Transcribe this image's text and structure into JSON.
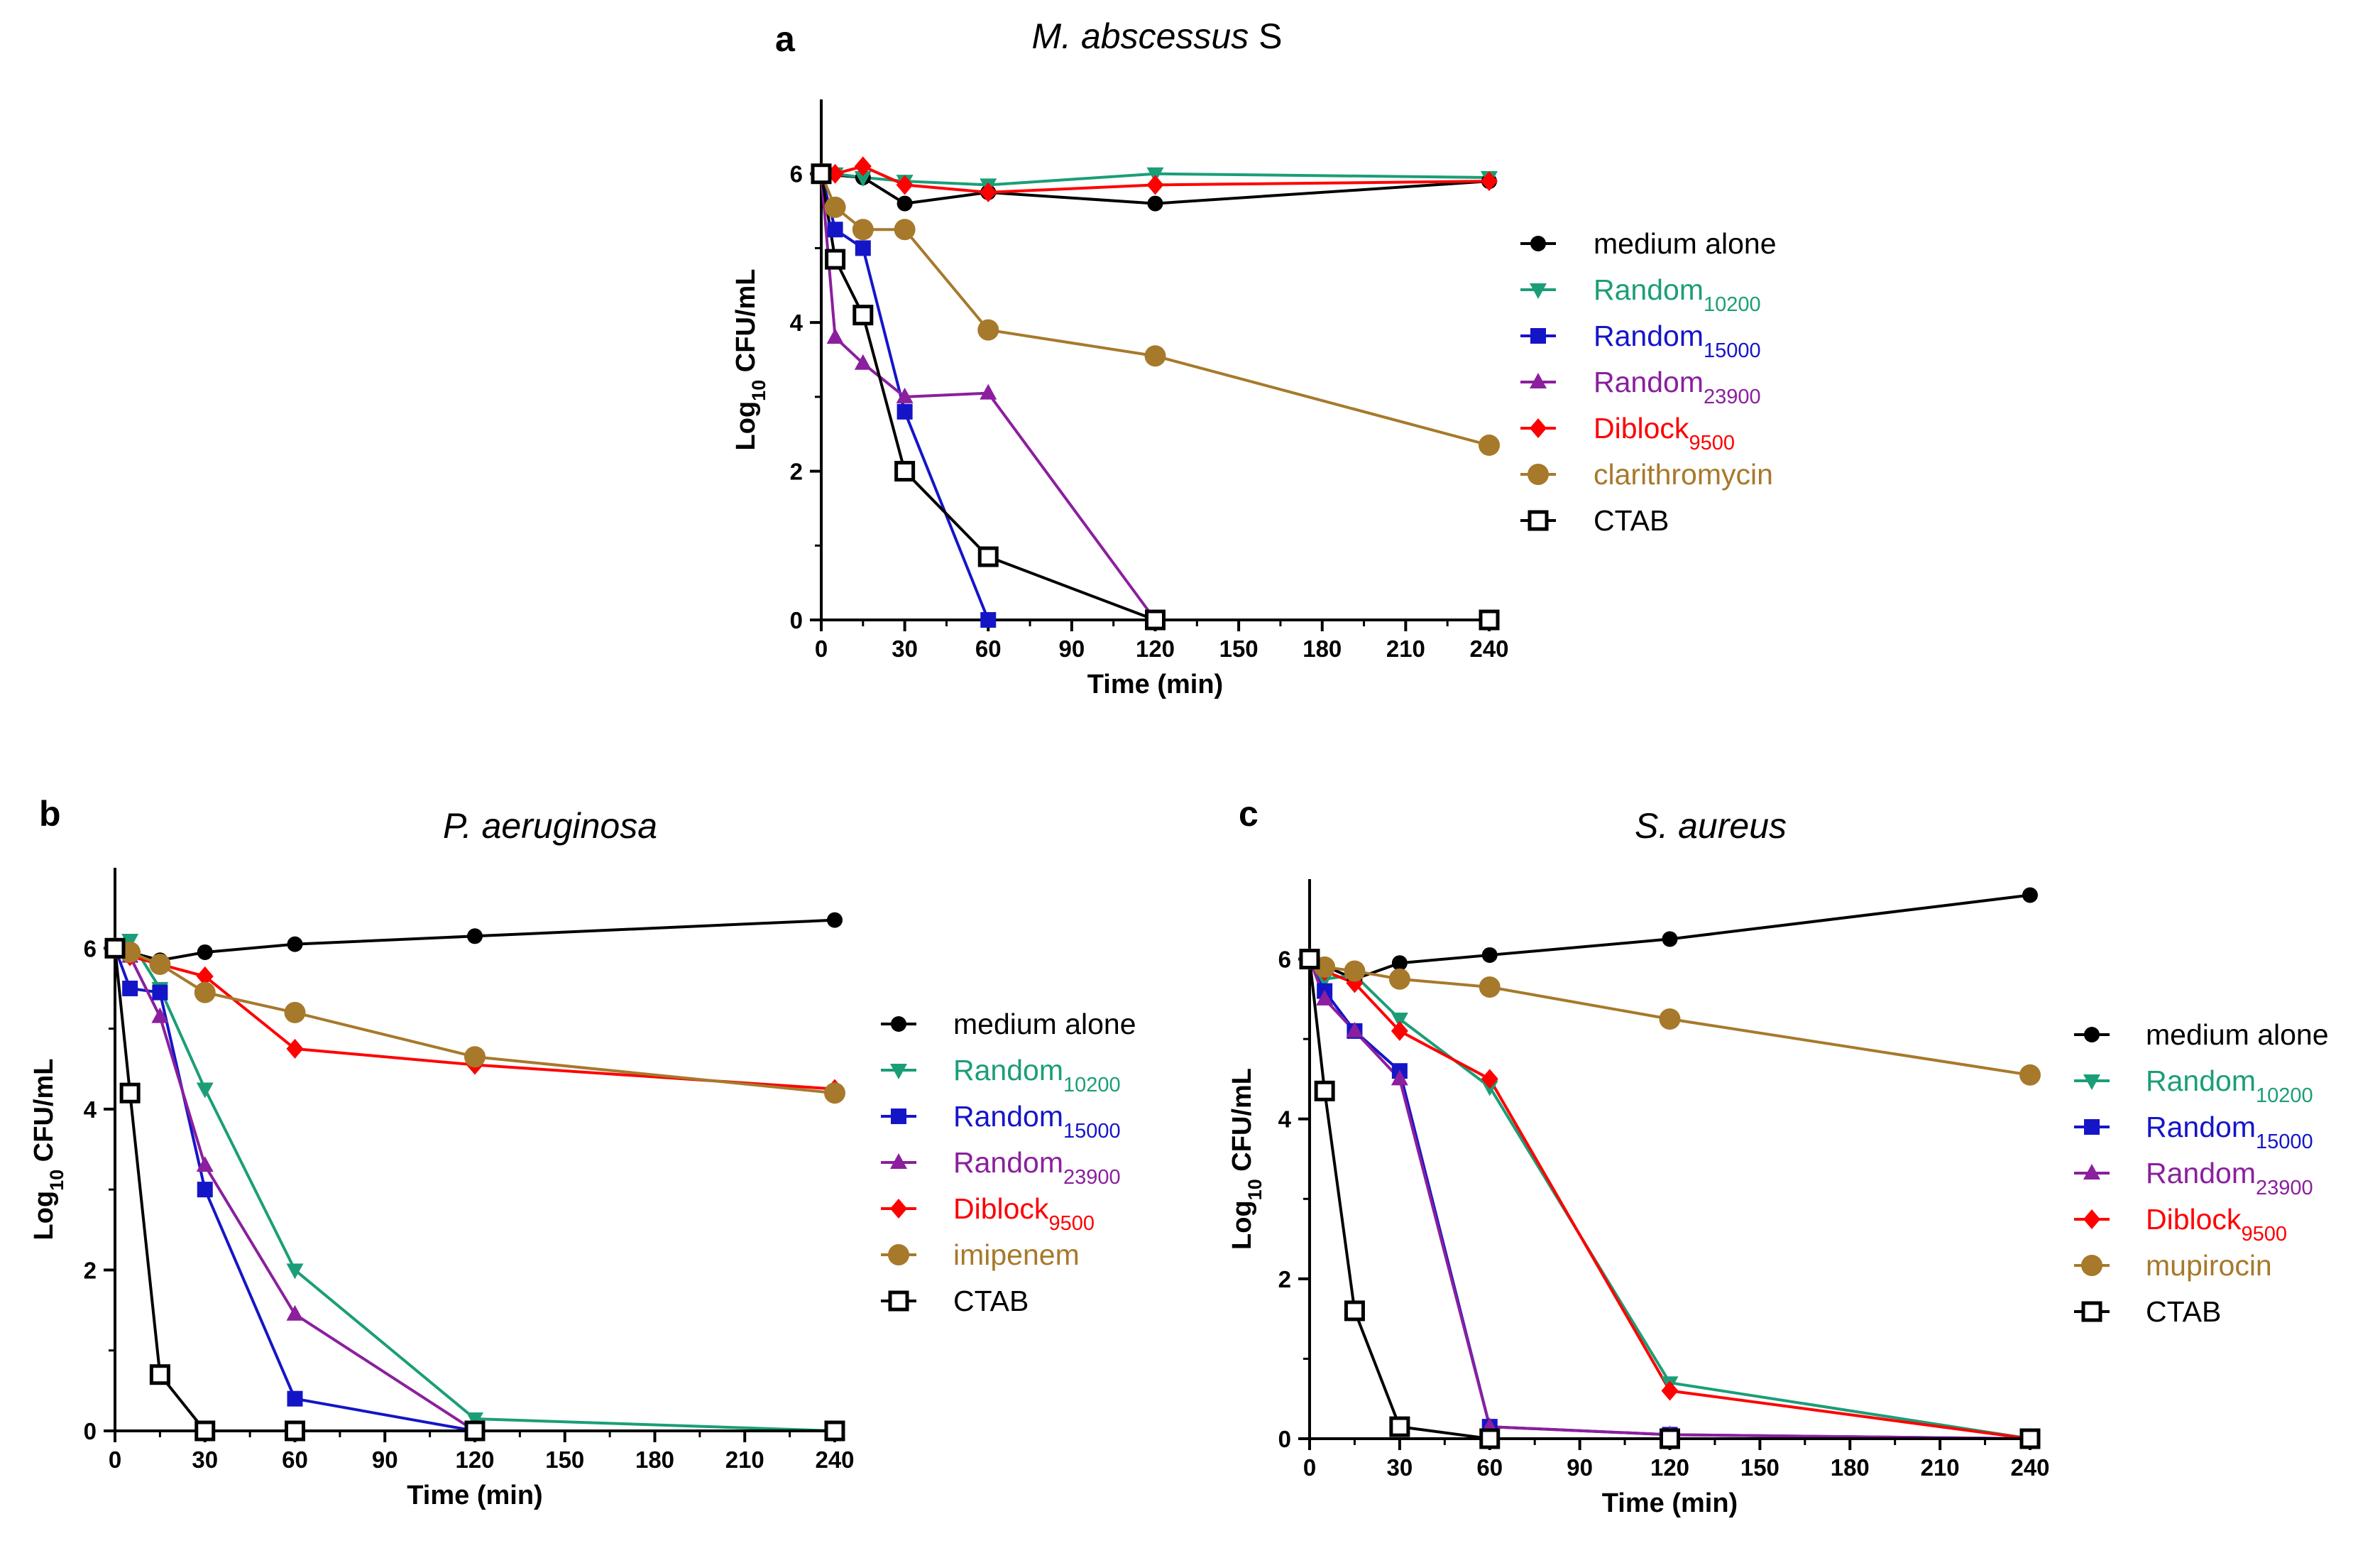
{
  "colors": {
    "medium alone": "#000000",
    "Random10200": "#1b9e77",
    "Random15000": "#1515c8",
    "Random23900": "#8b1f9e",
    "Diblock9500": "#ff0000",
    "antibiotic": "#a7792b",
    "CTAB": "#000000"
  },
  "chart_data": [
    {
      "panel": "a",
      "type": "line",
      "title": "M. abscessus S",
      "title_italic_part": "M. abscessus",
      "title_plain_part": " S",
      "xlabel": "Time (min)",
      "ylabel_main": "Log",
      "ylabel_sub": "10",
      "ylabel_rest": " CFU/mL",
      "xlim": [
        0,
        240
      ],
      "ylim": [
        0,
        7
      ],
      "xticks": [
        0,
        30,
        60,
        90,
        120,
        150,
        180,
        210,
        240
      ],
      "yticks": [
        0,
        2,
        4,
        6
      ],
      "legend_position": "right",
      "series": [
        {
          "name": "medium alone",
          "label_main": "medium alone",
          "label_sub": "",
          "marker": "circle",
          "color_key": "medium alone",
          "x": [
            0,
            15,
            30,
            60,
            120,
            240
          ],
          "y": [
            6.0,
            5.95,
            5.6,
            5.75,
            5.6,
            5.9
          ]
        },
        {
          "name": "Random10200",
          "label_main": "Random",
          "label_sub": "10200",
          "marker": "triangle-down",
          "color_key": "Random10200",
          "x": [
            0,
            5,
            15,
            30,
            60,
            120,
            240
          ],
          "y": [
            6.0,
            6.0,
            5.95,
            5.9,
            5.85,
            6.0,
            5.95
          ]
        },
        {
          "name": "Random15000",
          "label_main": "Random",
          "label_sub": "15000",
          "marker": "square",
          "color_key": "Random15000",
          "x": [
            0,
            5,
            15,
            30,
            60
          ],
          "y": [
            6.0,
            5.25,
            5.0,
            2.8,
            0.0
          ]
        },
        {
          "name": "Random23900",
          "label_main": "Random",
          "label_sub": "23900",
          "marker": "triangle-up",
          "color_key": "Random23900",
          "x": [
            0,
            5,
            15,
            30,
            60,
            120,
            240
          ],
          "y": [
            6.0,
            3.8,
            3.45,
            3.0,
            3.05,
            0.0,
            0.0
          ]
        },
        {
          "name": "Diblock9500",
          "label_main": "Diblock",
          "label_sub": "9500",
          "marker": "diamond",
          "color_key": "Diblock9500",
          "x": [
            0,
            5,
            15,
            30,
            60,
            120,
            240
          ],
          "y": [
            6.0,
            6.0,
            6.1,
            5.85,
            5.75,
            5.85,
            5.9
          ]
        },
        {
          "name": "clarithromycin",
          "label_main": "clarithromycin",
          "label_sub": "",
          "marker": "big-circle",
          "color_key": "antibiotic",
          "x": [
            0,
            5,
            15,
            30,
            60,
            120,
            240
          ],
          "y": [
            6.0,
            5.55,
            5.25,
            5.25,
            3.9,
            3.55,
            2.35
          ]
        },
        {
          "name": "CTAB",
          "label_main": "CTAB",
          "label_sub": "",
          "marker": "open-square",
          "color_key": "CTAB",
          "x": [
            0,
            5,
            15,
            30,
            60,
            120,
            240
          ],
          "y": [
            6.0,
            4.85,
            4.1,
            2.0,
            0.85,
            0.0,
            0.0
          ]
        }
      ]
    },
    {
      "panel": "b",
      "type": "line",
      "title": "P. aeruginosa",
      "title_italic_part": "P. aeruginosa",
      "title_plain_part": "",
      "xlabel": "Time (min)",
      "ylabel_main": "Log",
      "ylabel_sub": "10",
      "ylabel_rest": " CFU/mL",
      "xlim": [
        0,
        240
      ],
      "ylim": [
        0,
        7
      ],
      "xticks": [
        0,
        30,
        60,
        90,
        120,
        150,
        180,
        210,
        240
      ],
      "yticks": [
        0,
        2,
        4,
        6
      ],
      "legend_position": "right",
      "series": [
        {
          "name": "medium alone",
          "label_main": "medium alone",
          "label_sub": "",
          "marker": "circle",
          "color_key": "medium alone",
          "x": [
            0,
            15,
            30,
            60,
            120,
            240
          ],
          "y": [
            6.0,
            5.85,
            5.95,
            6.05,
            6.15,
            6.35
          ]
        },
        {
          "name": "Random10200",
          "label_main": "Random",
          "label_sub": "10200",
          "marker": "triangle-down",
          "color_key": "Random10200",
          "x": [
            0,
            5,
            15,
            30,
            60,
            120,
            240
          ],
          "y": [
            6.0,
            6.1,
            5.5,
            4.25,
            2.0,
            0.15,
            0.0
          ]
        },
        {
          "name": "Random15000",
          "label_main": "Random",
          "label_sub": "15000",
          "marker": "square",
          "color_key": "Random15000",
          "x": [
            0,
            5,
            15,
            30,
            60,
            120,
            240
          ],
          "y": [
            6.0,
            5.5,
            5.45,
            3.0,
            0.4,
            0.0,
            0.0
          ]
        },
        {
          "name": "Random23900",
          "label_main": "Random",
          "label_sub": "23900",
          "marker": "triangle-up",
          "color_key": "Random23900",
          "x": [
            0,
            5,
            15,
            30,
            60,
            120,
            240
          ],
          "y": [
            6.0,
            5.9,
            5.15,
            3.3,
            1.45,
            0.0,
            0.0
          ]
        },
        {
          "name": "Diblock9500",
          "label_main": "Diblock",
          "label_sub": "9500",
          "marker": "diamond",
          "color_key": "Diblock9500",
          "x": [
            0,
            5,
            15,
            30,
            60,
            120,
            240
          ],
          "y": [
            6.0,
            5.9,
            5.8,
            5.65,
            4.75,
            4.55,
            4.25
          ]
        },
        {
          "name": "imipenem",
          "label_main": "imipenem",
          "label_sub": "",
          "marker": "big-circle",
          "color_key": "antibiotic",
          "x": [
            0,
            5,
            15,
            30,
            60,
            120,
            240
          ],
          "y": [
            6.0,
            5.95,
            5.8,
            5.45,
            5.2,
            4.65,
            4.2
          ]
        },
        {
          "name": "CTAB",
          "label_main": "CTAB",
          "label_sub": "",
          "marker": "open-square",
          "color_key": "CTAB",
          "x": [
            0,
            5,
            15,
            30,
            60,
            120,
            240
          ],
          "y": [
            6.0,
            4.2,
            0.7,
            0.0,
            0.0,
            0.0,
            0.0
          ]
        }
      ]
    },
    {
      "panel": "c",
      "type": "line",
      "title": "S. aureus",
      "title_italic_part": "S. aureus",
      "title_plain_part": "",
      "xlabel": "Time (min)",
      "ylabel_main": "Log",
      "ylabel_sub": "10",
      "ylabel_rest": " CFU/mL",
      "xlim": [
        0,
        240
      ],
      "ylim": [
        0,
        7
      ],
      "xticks": [
        0,
        30,
        60,
        90,
        120,
        150,
        180,
        210,
        240
      ],
      "yticks": [
        0,
        2,
        4,
        6
      ],
      "legend_position": "right",
      "series": [
        {
          "name": "medium alone",
          "label_main": "medium alone",
          "label_sub": "",
          "marker": "circle",
          "color_key": "medium alone",
          "x": [
            0,
            15,
            30,
            60,
            120,
            240
          ],
          "y": [
            6.0,
            5.75,
            5.95,
            6.05,
            6.25,
            6.8
          ]
        },
        {
          "name": "Random10200",
          "label_main": "Random",
          "label_sub": "10200",
          "marker": "triangle-down",
          "color_key": "Random10200",
          "x": [
            0,
            5,
            15,
            30,
            60,
            120,
            240
          ],
          "y": [
            6.0,
            5.75,
            5.8,
            5.25,
            4.4,
            0.7,
            0.0
          ]
        },
        {
          "name": "Random15000",
          "label_main": "Random",
          "label_sub": "15000",
          "marker": "square",
          "color_key": "Random15000",
          "x": [
            0,
            5,
            15,
            30,
            60,
            120,
            240
          ],
          "y": [
            6.0,
            5.6,
            5.1,
            4.6,
            0.15,
            0.05,
            0.0
          ]
        },
        {
          "name": "Random23900",
          "label_main": "Random",
          "label_sub": "23900",
          "marker": "triangle-up",
          "color_key": "Random23900",
          "x": [
            0,
            5,
            15,
            30,
            60,
            120,
            240
          ],
          "y": [
            6.0,
            5.5,
            5.1,
            4.5,
            0.15,
            0.05,
            0.0
          ]
        },
        {
          "name": "Diblock9500",
          "label_main": "Diblock",
          "label_sub": "9500",
          "marker": "diamond",
          "color_key": "Diblock9500",
          "x": [
            0,
            5,
            15,
            30,
            60,
            120,
            240
          ],
          "y": [
            6.0,
            5.85,
            5.7,
            5.1,
            4.5,
            0.6,
            0.0
          ]
        },
        {
          "name": "mupirocin",
          "label_main": "mupirocin",
          "label_sub": "",
          "marker": "big-circle",
          "color_key": "antibiotic",
          "x": [
            0,
            5,
            15,
            30,
            60,
            120,
            240
          ],
          "y": [
            6.0,
            5.9,
            5.85,
            5.75,
            5.65,
            5.25,
            4.55
          ]
        },
        {
          "name": "CTAB",
          "label_main": "CTAB",
          "label_sub": "",
          "marker": "open-square",
          "color_key": "CTAB",
          "x": [
            0,
            5,
            15,
            30,
            60,
            120,
            240
          ],
          "y": [
            6.0,
            4.35,
            1.6,
            0.15,
            0.0,
            0.0,
            0.0
          ]
        }
      ]
    }
  ]
}
